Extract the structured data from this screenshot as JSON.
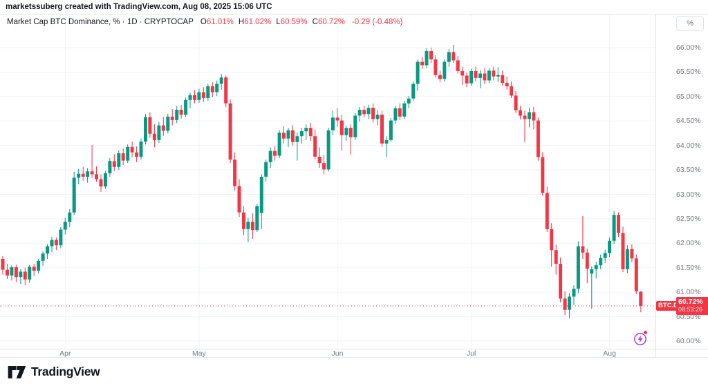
{
  "attribution": "marketssuberg created with TradingView.com, Aug 08, 2025 15:06 UTC",
  "legend": {
    "title": "Market Cap BTC Dominance, % · 1D · CRYPTOCAP",
    "ohlc": [
      {
        "label": "O",
        "value": "61.01%"
      },
      {
        "label": "H",
        "value": "61.02%"
      },
      {
        "label": "L",
        "value": "60.59%"
      },
      {
        "label": "C",
        "value": "60.72%"
      }
    ],
    "change": "-0.29 (-0.48%)"
  },
  "price_axis": {
    "unit_button": "%",
    "ticks": [
      "66.00%",
      "65.50%",
      "65.00%",
      "64.50%",
      "64.00%",
      "63.50%",
      "63.00%",
      "62.50%",
      "62.00%",
      "61.50%",
      "61.00%",
      "60.50%",
      "60.00%"
    ],
    "badge": {
      "symbol": "BTC.D",
      "price": "60.72%",
      "countdown": "08:53:26"
    }
  },
  "time_axis": {
    "months": [
      {
        "label": "Apr",
        "date": "2025-04-01"
      },
      {
        "label": "May",
        "date": "2025-05-01"
      },
      {
        "label": "Jun",
        "date": "2025-06-01"
      },
      {
        "label": "Jul",
        "date": "2025-07-01"
      },
      {
        "label": "Aug",
        "date": "2025-08-01"
      }
    ]
  },
  "footer": {
    "brand": "TradingView"
  },
  "colors": {
    "up": "#089981",
    "down": "#f23645",
    "grid": "#f0f3fa",
    "axis_text": "#787b86",
    "text": "#131722",
    "badge_bg": "#f23645",
    "flash_purple": "#a64ce8"
  },
  "chart_data": {
    "type": "candlestick",
    "title": "Market Cap BTC Dominance",
    "symbol": "CRYPTOCAP:BTC.D",
    "interval": "1D",
    "unit": "%",
    "current_price": 60.72,
    "last_ohlc": {
      "open": 61.01,
      "high": 61.02,
      "low": 60.59,
      "close": 60.72,
      "change": -0.29,
      "change_pct": -0.48
    },
    "y_ticks": [
      66.0,
      65.5,
      65.0,
      64.5,
      64.0,
      63.5,
      63.0,
      62.5,
      62.0,
      61.5,
      61.0,
      60.5,
      60.0
    ],
    "ylim": [
      59.85,
      66.65
    ],
    "x_range": [
      "2025-03-18",
      "2025-08-08"
    ],
    "grid": true,
    "legend_position": "top-left",
    "candles_format": [
      "date",
      "open",
      "high",
      "low",
      "close"
    ],
    "candles": [
      [
        "2025-03-18",
        61.68,
        61.74,
        61.36,
        61.46
      ],
      [
        "2025-03-19",
        61.46,
        61.58,
        61.27,
        61.34
      ],
      [
        "2025-03-20",
        61.34,
        61.55,
        61.24,
        61.51
      ],
      [
        "2025-03-21",
        61.51,
        61.56,
        61.21,
        61.31
      ],
      [
        "2025-03-22",
        61.31,
        61.47,
        61.17,
        61.42
      ],
      [
        "2025-03-23",
        61.42,
        61.5,
        61.14,
        61.26
      ],
      [
        "2025-03-24",
        61.26,
        61.56,
        61.19,
        61.52
      ],
      [
        "2025-03-25",
        61.52,
        61.58,
        61.33,
        61.44
      ],
      [
        "2025-03-26",
        61.44,
        61.68,
        61.38,
        61.64
      ],
      [
        "2025-03-27",
        61.64,
        61.84,
        61.54,
        61.79
      ],
      [
        "2025-03-28",
        61.79,
        61.98,
        61.68,
        61.94
      ],
      [
        "2025-03-29",
        61.94,
        62.13,
        61.82,
        62.07
      ],
      [
        "2025-03-30",
        62.07,
        62.12,
        61.86,
        61.96
      ],
      [
        "2025-03-31",
        61.96,
        62.33,
        61.9,
        62.28
      ],
      [
        "2025-04-01",
        62.28,
        62.52,
        62.18,
        62.44
      ],
      [
        "2025-04-02",
        62.44,
        62.7,
        62.33,
        62.63
      ],
      [
        "2025-04-03",
        62.63,
        63.46,
        62.58,
        63.34
      ],
      [
        "2025-04-04",
        63.34,
        63.52,
        63.21,
        63.42
      ],
      [
        "2025-04-05",
        63.42,
        63.56,
        63.28,
        63.36
      ],
      [
        "2025-04-06",
        63.36,
        63.54,
        63.24,
        63.47
      ],
      [
        "2025-04-07",
        63.47,
        64.01,
        63.34,
        63.41
      ],
      [
        "2025-04-08",
        63.41,
        63.57,
        63.26,
        63.31
      ],
      [
        "2025-04-09",
        63.31,
        63.41,
        63.05,
        63.16
      ],
      [
        "2025-04-10",
        63.16,
        63.48,
        63.11,
        63.43
      ],
      [
        "2025-04-11",
        63.43,
        63.74,
        63.36,
        63.68
      ],
      [
        "2025-04-12",
        63.68,
        63.82,
        63.48,
        63.56
      ],
      [
        "2025-04-13",
        63.56,
        63.9,
        63.5,
        63.84
      ],
      [
        "2025-04-14",
        63.84,
        63.94,
        63.6,
        63.69
      ],
      [
        "2025-04-15",
        63.69,
        64.02,
        63.64,
        63.97
      ],
      [
        "2025-04-16",
        63.97,
        64.08,
        63.76,
        63.86
      ],
      [
        "2025-04-17",
        63.86,
        63.98,
        63.66,
        63.77
      ],
      [
        "2025-04-18",
        63.77,
        64.14,
        63.71,
        64.08
      ],
      [
        "2025-04-19",
        64.08,
        64.64,
        64.02,
        64.58
      ],
      [
        "2025-04-20",
        64.58,
        64.68,
        64.16,
        64.24
      ],
      [
        "2025-04-21",
        64.24,
        64.43,
        63.96,
        64.11
      ],
      [
        "2025-04-22",
        64.11,
        64.48,
        64.05,
        64.41
      ],
      [
        "2025-04-23",
        64.41,
        64.58,
        64.2,
        64.3
      ],
      [
        "2025-04-24",
        64.3,
        64.65,
        64.25,
        64.59
      ],
      [
        "2025-04-25",
        64.59,
        64.74,
        64.41,
        64.52
      ],
      [
        "2025-04-26",
        64.52,
        64.81,
        64.46,
        64.73
      ],
      [
        "2025-04-27",
        64.73,
        64.83,
        64.55,
        64.63
      ],
      [
        "2025-04-28",
        64.63,
        64.98,
        64.58,
        64.93
      ],
      [
        "2025-04-29",
        64.93,
        65.08,
        64.76,
        65.03
      ],
      [
        "2025-04-30",
        65.03,
        65.13,
        64.86,
        64.93
      ],
      [
        "2025-05-01",
        64.93,
        65.16,
        64.87,
        65.09
      ],
      [
        "2025-05-02",
        65.09,
        65.19,
        64.89,
        64.97
      ],
      [
        "2025-05-03",
        64.97,
        65.26,
        64.91,
        65.21
      ],
      [
        "2025-05-04",
        65.21,
        65.29,
        64.99,
        65.09
      ],
      [
        "2025-05-05",
        65.09,
        65.33,
        65.01,
        65.26
      ],
      [
        "2025-05-06",
        65.26,
        65.46,
        65.14,
        65.39
      ],
      [
        "2025-05-07",
        65.39,
        65.43,
        64.78,
        64.86
      ],
      [
        "2025-05-08",
        64.86,
        64.94,
        63.64,
        63.71
      ],
      [
        "2025-05-09",
        63.71,
        63.86,
        63.08,
        63.17
      ],
      [
        "2025-05-10",
        63.17,
        63.31,
        62.54,
        62.63
      ],
      [
        "2025-05-11",
        62.63,
        62.76,
        62.16,
        62.29
      ],
      [
        "2025-05-12",
        62.29,
        62.52,
        62.02,
        62.44
      ],
      [
        "2025-05-13",
        62.44,
        62.61,
        62.09,
        62.27
      ],
      [
        "2025-05-14",
        62.27,
        62.81,
        62.23,
        62.76
      ],
      [
        "2025-05-15",
        62.62,
        63.41,
        62.29,
        63.36
      ],
      [
        "2025-05-16",
        63.36,
        63.71,
        63.26,
        63.66
      ],
      [
        "2025-05-17",
        63.66,
        63.96,
        63.54,
        63.89
      ],
      [
        "2025-05-18",
        63.89,
        63.99,
        63.69,
        63.79
      ],
      [
        "2025-05-19",
        63.79,
        64.31,
        63.74,
        64.26
      ],
      [
        "2025-05-20",
        64.26,
        64.39,
        64.04,
        64.14
      ],
      [
        "2025-05-21",
        64.14,
        64.36,
        63.97,
        64.31
      ],
      [
        "2025-05-22",
        64.31,
        64.41,
        63.99,
        64.07
      ],
      [
        "2025-05-23",
        64.07,
        64.26,
        63.69,
        64.19
      ],
      [
        "2025-05-24",
        64.19,
        64.36,
        64.04,
        64.29
      ],
      [
        "2025-05-25",
        64.29,
        64.43,
        64.11,
        64.36
      ],
      [
        "2025-05-26",
        64.36,
        64.46,
        64.09,
        64.19
      ],
      [
        "2025-05-27",
        64.19,
        64.33,
        63.71,
        63.77
      ],
      [
        "2025-05-28",
        63.77,
        63.96,
        63.54,
        63.64
      ],
      [
        "2025-05-29",
        63.64,
        63.81,
        63.41,
        63.51
      ],
      [
        "2025-05-30",
        63.51,
        64.36,
        63.47,
        64.31
      ],
      [
        "2025-05-31",
        64.31,
        64.71,
        64.21,
        64.57
      ],
      [
        "2025-06-01",
        64.57,
        64.76,
        64.39,
        64.51
      ],
      [
        "2025-06-02",
        64.51,
        64.63,
        63.89,
        64.21
      ],
      [
        "2025-06-03",
        64.21,
        64.41,
        64.09,
        64.36
      ],
      [
        "2025-06-04",
        64.36,
        64.43,
        63.81,
        64.17
      ],
      [
        "2025-06-05",
        64.17,
        64.66,
        64.11,
        64.61
      ],
      [
        "2025-06-06",
        64.61,
        64.79,
        64.49,
        64.73
      ],
      [
        "2025-06-07",
        64.73,
        64.81,
        64.57,
        64.64
      ],
      [
        "2025-06-08",
        64.64,
        64.83,
        64.54,
        64.77
      ],
      [
        "2025-06-09",
        64.77,
        64.86,
        64.47,
        64.54
      ],
      [
        "2025-06-10",
        64.54,
        64.71,
        64.41,
        64.63
      ],
      [
        "2025-06-11",
        64.63,
        64.71,
        63.97,
        64.04
      ],
      [
        "2025-06-12",
        64.04,
        64.19,
        63.77,
        64.11
      ],
      [
        "2025-06-13",
        64.11,
        64.56,
        64.07,
        64.51
      ],
      [
        "2025-06-14",
        64.51,
        64.81,
        64.44,
        64.76
      ],
      [
        "2025-06-15",
        64.76,
        64.86,
        64.52,
        64.59
      ],
      [
        "2025-06-16",
        64.59,
        64.91,
        64.54,
        64.86
      ],
      [
        "2025-06-17",
        64.86,
        65.01,
        64.76,
        64.96
      ],
      [
        "2025-06-18",
        64.96,
        65.31,
        64.91,
        65.26
      ],
      [
        "2025-06-19",
        65.26,
        65.76,
        65.11,
        65.71
      ],
      [
        "2025-06-20",
        65.71,
        65.81,
        65.56,
        65.64
      ],
      [
        "2025-06-21",
        65.64,
        65.99,
        65.58,
        65.93
      ],
      [
        "2025-06-22",
        65.93,
        66.0,
        65.69,
        65.76
      ],
      [
        "2025-06-23",
        65.76,
        65.84,
        65.39,
        65.44
      ],
      [
        "2025-06-24",
        65.44,
        65.53,
        65.29,
        65.36
      ],
      [
        "2025-06-25",
        65.36,
        65.76,
        65.31,
        65.71
      ],
      [
        "2025-06-26",
        65.71,
        65.97,
        65.61,
        65.91
      ],
      [
        "2025-06-27",
        65.91,
        66.06,
        65.69,
        65.74
      ],
      [
        "2025-06-28",
        65.74,
        65.83,
        65.47,
        65.52
      ],
      [
        "2025-06-29",
        65.52,
        65.61,
        65.24,
        65.43
      ],
      [
        "2025-06-30",
        65.43,
        65.49,
        65.19,
        65.27
      ],
      [
        "2025-07-01",
        65.27,
        65.57,
        65.22,
        65.52
      ],
      [
        "2025-07-02",
        65.52,
        65.61,
        65.31,
        65.38
      ],
      [
        "2025-07-03",
        65.38,
        65.54,
        65.17,
        65.47
      ],
      [
        "2025-07-04",
        65.47,
        65.58,
        65.26,
        65.33
      ],
      [
        "2025-07-05",
        65.33,
        65.58,
        65.28,
        65.53
      ],
      [
        "2025-07-06",
        65.53,
        65.61,
        65.33,
        65.41
      ],
      [
        "2025-07-07",
        65.41,
        65.6,
        65.3,
        65.44
      ],
      [
        "2025-07-08",
        65.44,
        65.53,
        65.22,
        65.28
      ],
      [
        "2025-07-09",
        65.28,
        65.41,
        65.14,
        65.21
      ],
      [
        "2025-07-10",
        65.21,
        65.31,
        64.97,
        65.02
      ],
      [
        "2025-07-11",
        65.02,
        65.11,
        64.66,
        64.72
      ],
      [
        "2025-07-12",
        64.72,
        64.81,
        64.53,
        64.61
      ],
      [
        "2025-07-13",
        64.61,
        64.71,
        64.07,
        64.54
      ],
      [
        "2025-07-14",
        64.54,
        64.77,
        64.37,
        64.68
      ],
      [
        "2025-07-15",
        64.68,
        64.79,
        64.33,
        64.51
      ],
      [
        "2025-07-16",
        64.51,
        64.57,
        63.69,
        63.76
      ],
      [
        "2025-07-17",
        63.76,
        63.86,
        62.97,
        63.03
      ],
      [
        "2025-07-18",
        63.03,
        63.16,
        62.23,
        62.29
      ],
      [
        "2025-07-19",
        62.29,
        62.41,
        61.52,
        61.86
      ],
      [
        "2025-07-20",
        61.86,
        61.97,
        61.36,
        61.58
      ],
      [
        "2025-07-21",
        61.58,
        61.71,
        60.79,
        60.87
      ],
      [
        "2025-07-22",
        60.87,
        61.02,
        60.53,
        60.64
      ],
      [
        "2025-07-23",
        60.64,
        60.98,
        60.47,
        60.91
      ],
      [
        "2025-07-24",
        60.91,
        61.14,
        60.74,
        61.07
      ],
      [
        "2025-07-25",
        61.07,
        62.04,
        60.98,
        61.94
      ],
      [
        "2025-07-26",
        61.94,
        62.56,
        61.68,
        61.81
      ],
      [
        "2025-07-27",
        61.81,
        61.89,
        61.18,
        61.48
      ],
      [
        "2025-07-28",
        61.38,
        61.53,
        60.66,
        61.47
      ],
      [
        "2025-07-29",
        61.47,
        61.62,
        61.28,
        61.55
      ],
      [
        "2025-07-30",
        61.55,
        61.77,
        61.47,
        61.7
      ],
      [
        "2025-07-31",
        61.7,
        61.87,
        61.6,
        61.8
      ],
      [
        "2025-08-01",
        61.8,
        62.12,
        61.72,
        62.05
      ],
      [
        "2025-08-02",
        62.05,
        62.66,
        61.99,
        62.58
      ],
      [
        "2025-08-03",
        62.58,
        62.63,
        62.13,
        62.21
      ],
      [
        "2025-08-04",
        62.21,
        62.34,
        61.41,
        61.47
      ],
      [
        "2025-08-05",
        61.47,
        61.96,
        61.39,
        61.88
      ],
      [
        "2025-08-06",
        61.88,
        61.98,
        61.61,
        61.69
      ],
      [
        "2025-08-07",
        61.69,
        61.77,
        60.96,
        61.02
      ],
      [
        "2025-08-08",
        61.01,
        61.02,
        60.59,
        60.72
      ]
    ]
  }
}
